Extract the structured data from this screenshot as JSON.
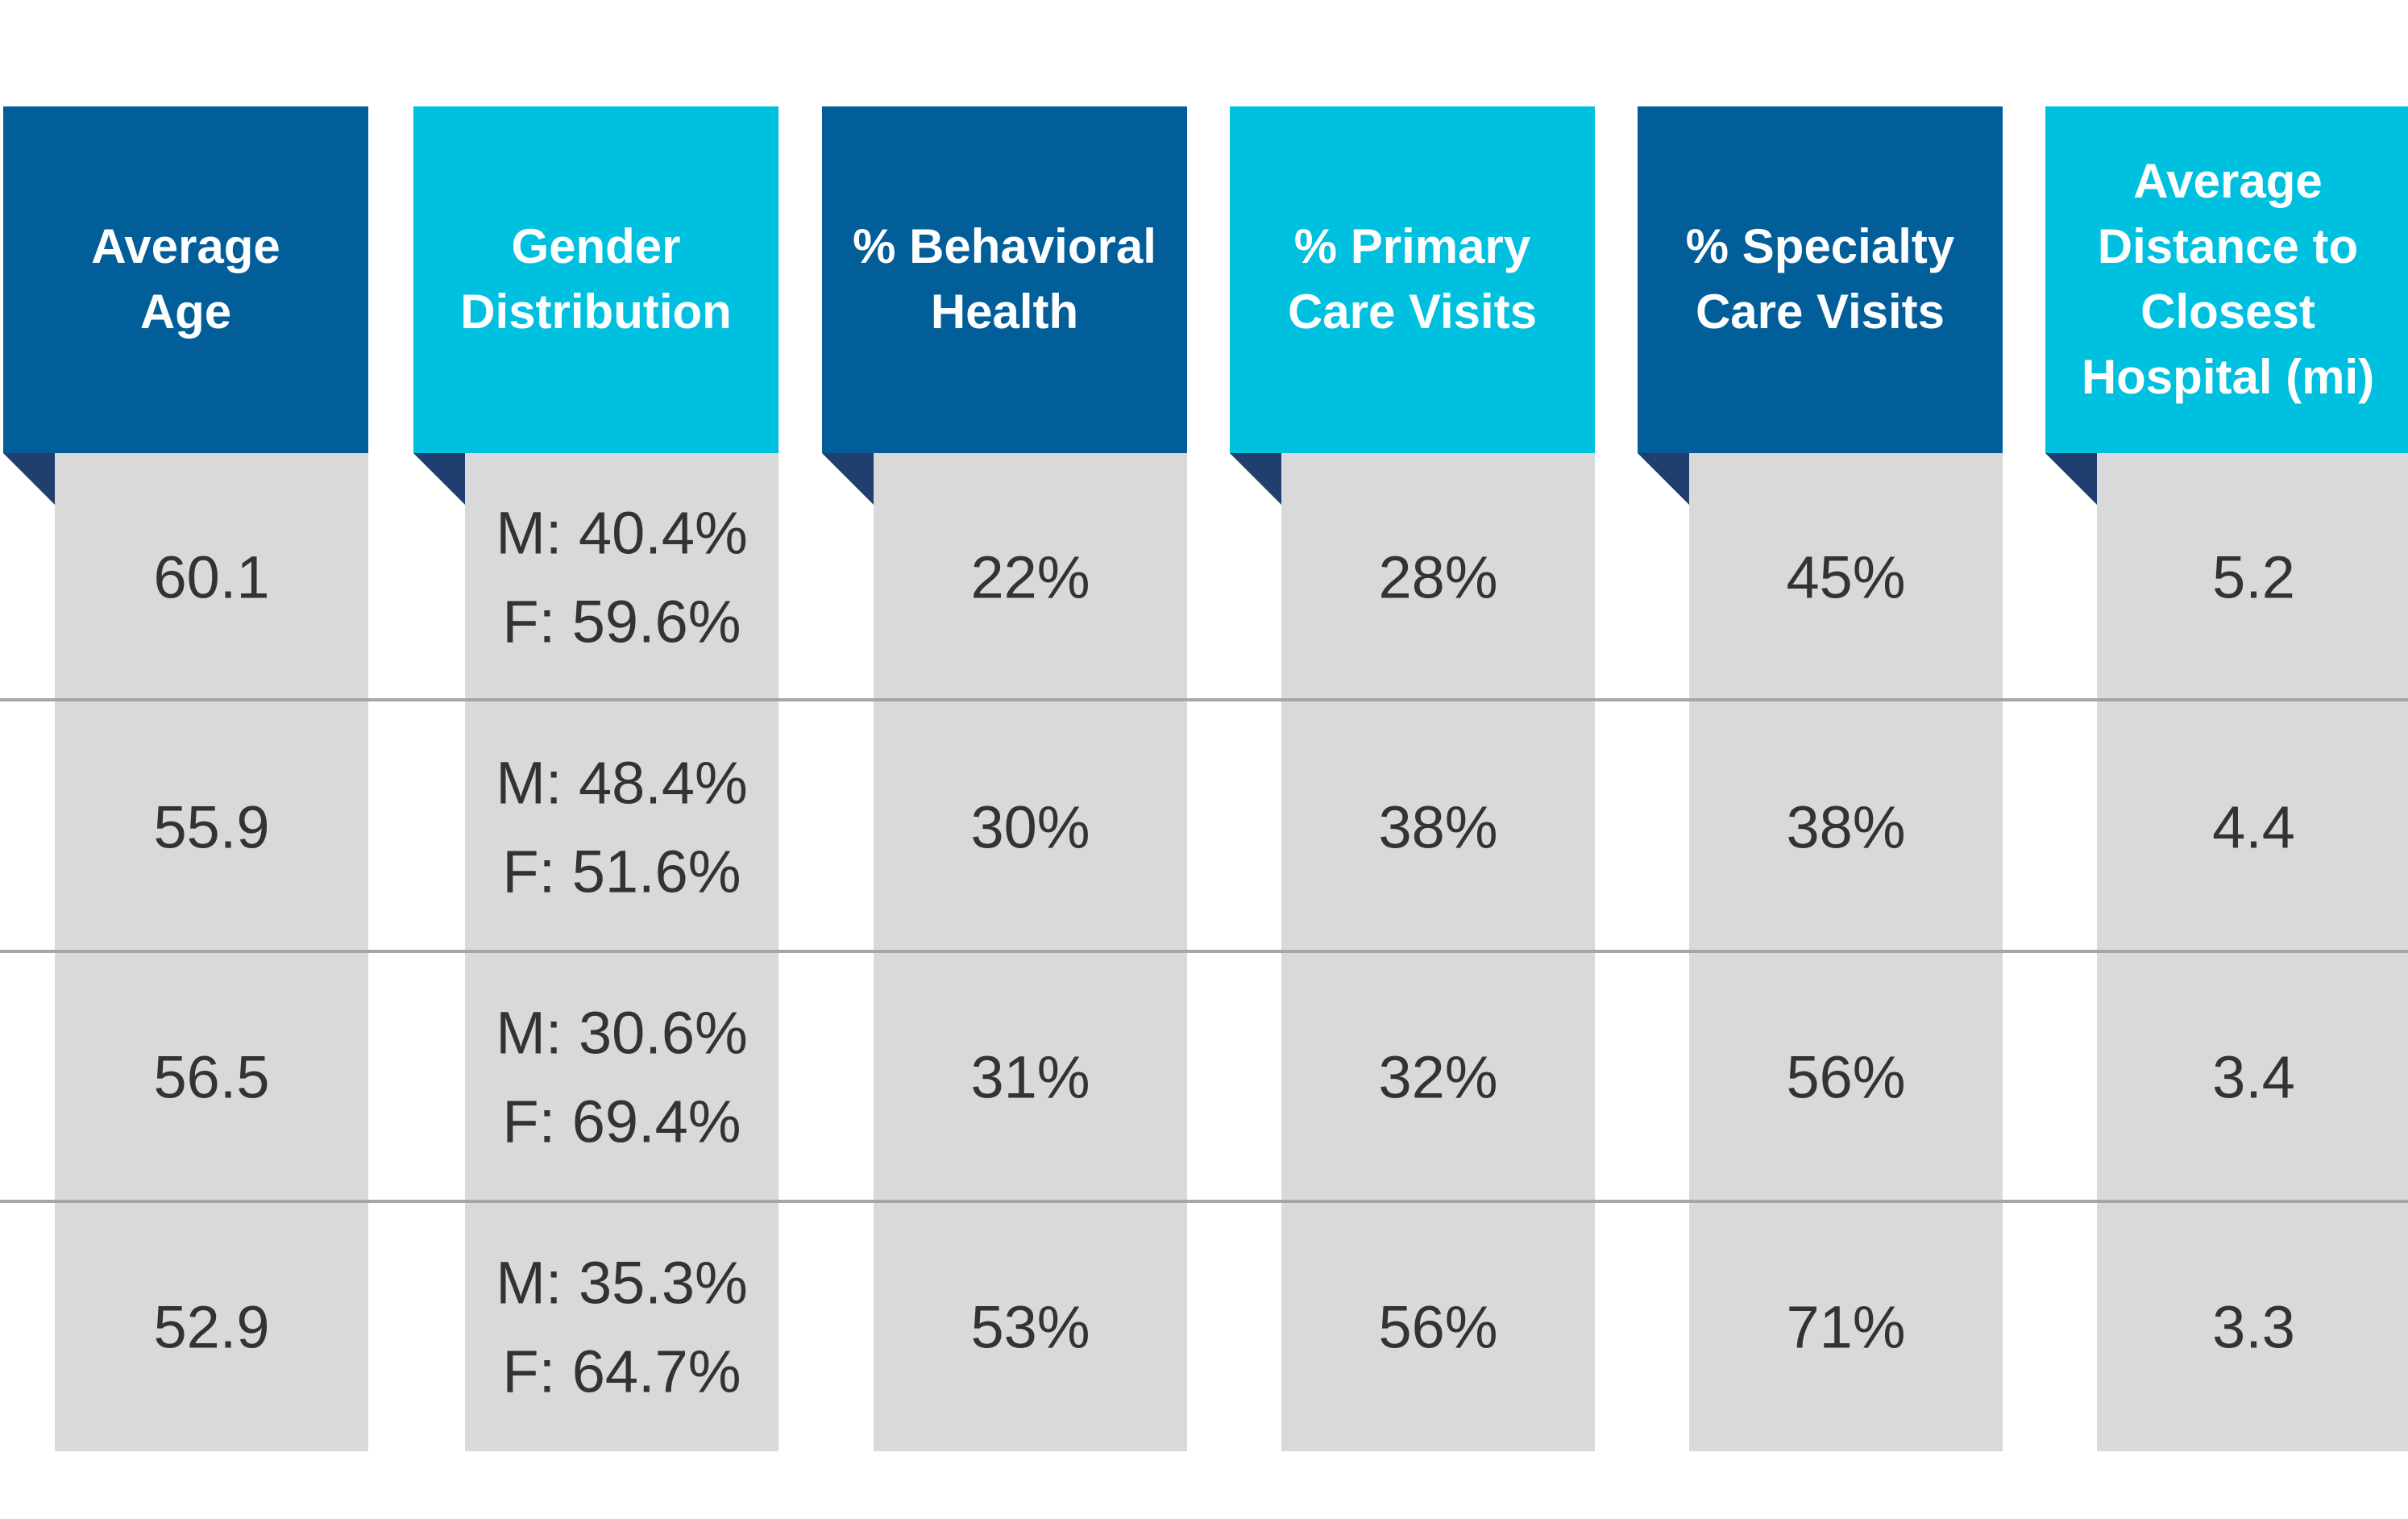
{
  "colors": {
    "header_dark": "#025e99",
    "header_light": "#00c0df",
    "fold": "#1f3f6e",
    "cell_bg": "#d9d9d9",
    "row_divider": "#a6a6a6",
    "value_text": "#333333",
    "header_text": "#ffffff"
  },
  "chart_data": {
    "type": "table",
    "columns": [
      {
        "key": "average_age",
        "header_lines": [
          "Average",
          "Age"
        ],
        "header_style": "dark"
      },
      {
        "key": "gender_distribution",
        "header_lines": [
          "Gender",
          "Distribution"
        ],
        "header_style": "light"
      },
      {
        "key": "pct_behavioral_health",
        "header_lines": [
          "% Behavioral",
          "Health"
        ],
        "header_style": "dark"
      },
      {
        "key": "pct_primary_care_visits",
        "header_lines": [
          "% Primary",
          "Care Visits"
        ],
        "header_style": "light"
      },
      {
        "key": "pct_specialty_care_visits",
        "header_lines": [
          "% Specialty",
          "Care Visits"
        ],
        "header_style": "dark"
      },
      {
        "key": "average_distance_closest_hospital_mi",
        "header_lines": [
          "Average",
          "Distance to",
          "Closest",
          "Hospital (mi)"
        ],
        "header_style": "light"
      }
    ],
    "rows": [
      [
        [
          "60.1"
        ],
        [
          "M: 40.4%",
          "F: 59.6%"
        ],
        [
          "22%"
        ],
        [
          "28%"
        ],
        [
          "45%"
        ],
        [
          "5.2"
        ]
      ],
      [
        [
          "55.9"
        ],
        [
          "M: 48.4%",
          "F: 51.6%"
        ],
        [
          "30%"
        ],
        [
          "38%"
        ],
        [
          "38%"
        ],
        [
          "4.4"
        ]
      ],
      [
        [
          "56.5"
        ],
        [
          "M: 30.6%",
          "F: 69.4%"
        ],
        [
          "31%"
        ],
        [
          "32%"
        ],
        [
          "56%"
        ],
        [
          "3.4"
        ]
      ],
      [
        [
          "52.9"
        ],
        [
          "M: 35.3%",
          "F: 64.7%"
        ],
        [
          "53%"
        ],
        [
          "56%"
        ],
        [
          "71%"
        ],
        [
          "3.3"
        ]
      ]
    ]
  }
}
